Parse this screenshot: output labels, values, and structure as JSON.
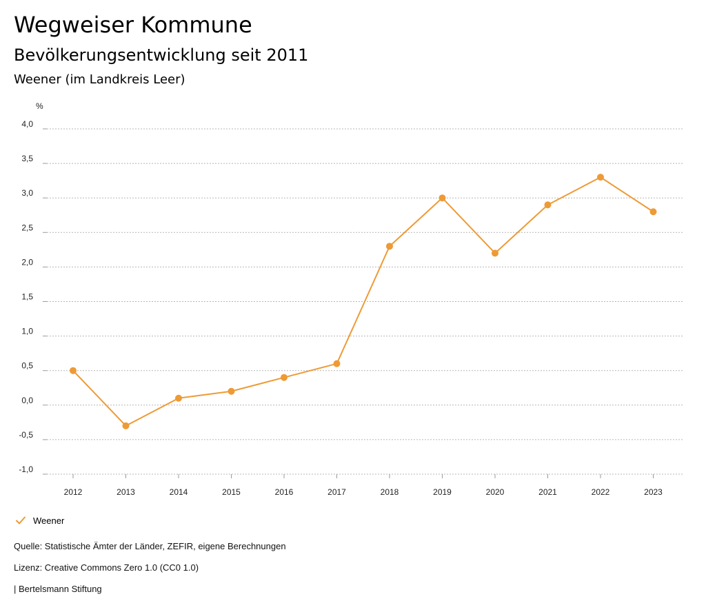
{
  "header": {
    "title": "Wegweiser Kommune",
    "subtitle": "Bevölkerungsentwicklung seit 2011",
    "region": "Weener (im Landkreis Leer)"
  },
  "chart_data": {
    "type": "line",
    "unit": "%",
    "x": [
      "2012",
      "2013",
      "2014",
      "2015",
      "2016",
      "2017",
      "2018",
      "2019",
      "2020",
      "2021",
      "2022",
      "2023"
    ],
    "series": [
      {
        "name": "Weener",
        "color": "#ee9a35",
        "values": [
          0.5,
          -0.3,
          0.1,
          0.2,
          0.4,
          0.6,
          2.3,
          3.0,
          2.2,
          2.9,
          3.3,
          2.8
        ]
      }
    ],
    "ylim": [
      -1.0,
      4.0
    ],
    "yticks": [
      4.0,
      3.5,
      3.0,
      2.5,
      2.0,
      1.5,
      1.0,
      0.5,
      0.0,
      -0.5,
      -1.0
    ],
    "ytick_labels": [
      "4,0",
      "3,5",
      "3,0",
      "2,5",
      "2,0",
      "1,5",
      "1,0",
      "0,5",
      "0,0",
      "-0,5",
      "-1,0"
    ],
    "grid": true,
    "legend_position": "bottom-left"
  },
  "legend": {
    "label": "Weener"
  },
  "footer": {
    "source": "Quelle: Statistische Ämter der Länder, ZEFIR, eigene Berechnungen",
    "license": "Lizenz: Creative Commons Zero 1.0 (CC0 1.0)",
    "publisher": "| Bertelsmann Stiftung"
  }
}
